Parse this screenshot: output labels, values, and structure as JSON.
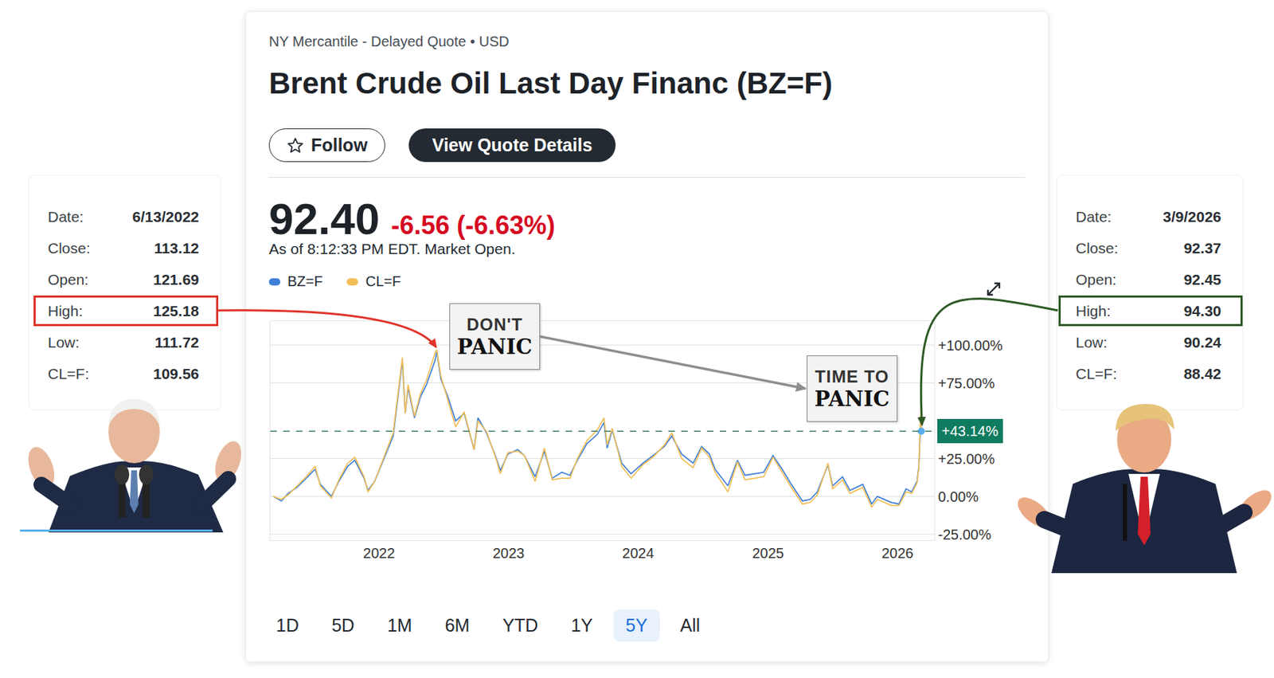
{
  "header": {
    "exchange": "NY Mercantile - Delayed Quote • USD",
    "title": "Brent Crude Oil Last Day Financ (BZ=F)",
    "buttons": [
      "Follow",
      "View Quote Details"
    ]
  },
  "quote": {
    "price": "92.40",
    "change": "-6.56",
    "change_percent": "(-6.63%)",
    "as_of": "As of 8:12:33 PM EDT. Market Open."
  },
  "range_buttons": {
    "items": [
      "1D",
      "5D",
      "1M",
      "6M",
      "YTD",
      "1Y",
      "5Y",
      "All"
    ],
    "selected": "5Y"
  },
  "panels": [
    {
      "side": "left",
      "color": "#e0342a",
      "highlight": "High:",
      "rows": [
        [
          "Date:",
          "6/13/2022"
        ],
        [
          "Close:",
          "113.12"
        ],
        [
          "Open:",
          "121.69"
        ],
        [
          "High:",
          "125.18"
        ],
        [
          "Low:",
          "111.72"
        ],
        [
          "CL=F:",
          "109.56"
        ]
      ]
    },
    {
      "side": "right",
      "color": "#2f5a27",
      "highlight": "High:",
      "rows": [
        [
          "Date:",
          "3/9/2026"
        ],
        [
          "Close:",
          "92.37"
        ],
        [
          "Open:",
          "92.45"
        ],
        [
          "High:",
          "94.30"
        ],
        [
          "Low:",
          "90.24"
        ],
        [
          "CL=F:",
          "88.42"
        ]
      ]
    }
  ],
  "callouts": [
    "DON'T PANIC",
    "TIME TO PANIC"
  ],
  "chart_data": {
    "type": "line",
    "x": [
      "2021-03-09",
      "2021-04-01",
      "2021-04-20",
      "2021-05-15",
      "2021-06-10",
      "2021-07-05",
      "2021-07-20",
      "2021-08-20",
      "2021-09-10",
      "2021-10-05",
      "2021-10-25",
      "2021-11-20",
      "2021-12-01",
      "2021-12-20",
      "2022-01-15",
      "2022-02-10",
      "2022-03-08",
      "2022-03-16",
      "2022-03-24",
      "2022-04-11",
      "2022-04-28",
      "2022-05-15",
      "2022-06-08",
      "2022-06-13",
      "2022-06-24",
      "2022-07-14",
      "2022-08-05",
      "2022-08-29",
      "2022-09-26",
      "2022-10-07",
      "2022-10-31",
      "2022-11-28",
      "2022-12-09",
      "2022-12-30",
      "2023-01-27",
      "2023-02-15",
      "2023-03-17",
      "2023-04-12",
      "2023-05-04",
      "2023-05-31",
      "2023-06-23",
      "2023-07-14",
      "2023-08-10",
      "2023-09-08",
      "2023-09-27",
      "2023-10-06",
      "2023-10-20",
      "2023-11-16",
      "2023-12-12",
      "2024-01-15",
      "2024-02-12",
      "2024-03-15",
      "2024-04-05",
      "2024-05-03",
      "2024-06-04",
      "2024-06-28",
      "2024-07-20",
      "2024-08-05",
      "2024-09-10",
      "2024-10-07",
      "2024-10-28",
      "2024-11-25",
      "2024-12-20",
      "2025-01-15",
      "2025-02-10",
      "2025-03-05",
      "2025-04-08",
      "2025-04-30",
      "2025-05-20",
      "2025-06-19",
      "2025-07-02",
      "2025-07-30",
      "2025-08-20",
      "2025-09-25",
      "2025-10-20",
      "2025-11-05",
      "2025-12-15",
      "2026-01-05",
      "2026-01-25",
      "2026-02-10",
      "2026-02-25",
      "2026-03-02",
      "2026-03-06",
      "2026-03-08",
      "2026-03-09"
    ],
    "series": [
      {
        "name": "BZ=F",
        "color": "#3f7fd8",
        "values": [
          0,
          -3,
          2,
          6,
          12,
          18,
          8,
          0,
          10,
          20,
          24,
          12,
          4,
          10,
          25,
          40,
          90,
          55,
          72,
          52,
          66,
          74,
          90,
          96,
          78,
          66,
          50,
          55,
          31,
          52,
          42,
          25,
          17,
          28,
          31,
          27,
          13,
          30,
          12,
          16,
          14,
          24,
          35,
          41,
          49,
          32,
          44,
          22,
          15,
          22,
          27,
          33,
          40,
          28,
          22,
          33,
          28,
          18,
          7,
          24,
          14,
          15,
          16,
          27,
          18,
          9,
          -3,
          -2,
          3,
          21,
          7,
          13,
          4,
          8,
          -5,
          0,
          -4,
          -5,
          5,
          3,
          10,
          20,
          47,
          55,
          43.14
        ]
      },
      {
        "name": "CL=F",
        "color": "#f2be58",
        "values": [
          0,
          -2,
          1,
          7,
          13,
          20,
          7,
          -1,
          11,
          22,
          26,
          13,
          3,
          10,
          26,
          42,
          92,
          55,
          74,
          53,
          68,
          77,
          95,
          97,
          80,
          64,
          46,
          56,
          31,
          50,
          43,
          24,
          15,
          29,
          30,
          27,
          10,
          32,
          11,
          12,
          12,
          25,
          37,
          44,
          52,
          34,
          45,
          20,
          12,
          21,
          26,
          34,
          42,
          25,
          19,
          32,
          26,
          16,
          3,
          23,
          11,
          12,
          13,
          26,
          16,
          7,
          -5,
          -4,
          1,
          22,
          5,
          11,
          2,
          6,
          -7,
          -2,
          -6,
          -6,
          3,
          2,
          9,
          19,
          48,
          56,
          42.9
        ]
      }
    ],
    "xlim": [
      "2021-03-01",
      "2026-04-15"
    ],
    "xticks": [
      {
        "value": "2022-01-01",
        "label": "2022"
      },
      {
        "value": "2023-01-01",
        "label": "2023"
      },
      {
        "value": "2024-01-01",
        "label": "2024"
      },
      {
        "value": "2025-01-01",
        "label": "2025"
      },
      {
        "value": "2026-01-01",
        "label": "2026"
      }
    ],
    "ylim": [
      -29,
      116
    ],
    "yticks": [
      {
        "value": 100,
        "label": "+100.00%"
      },
      {
        "value": 75,
        "label": "+75.00%"
      },
      {
        "value": 25,
        "label": "+25.00%"
      },
      {
        "value": 0,
        "label": "0.00%"
      },
      {
        "value": -25,
        "label": "-25.00%"
      }
    ],
    "reference_line": {
      "value": 43.14,
      "label": "+43.14%"
    },
    "grid": true,
    "legend": "top-left"
  }
}
